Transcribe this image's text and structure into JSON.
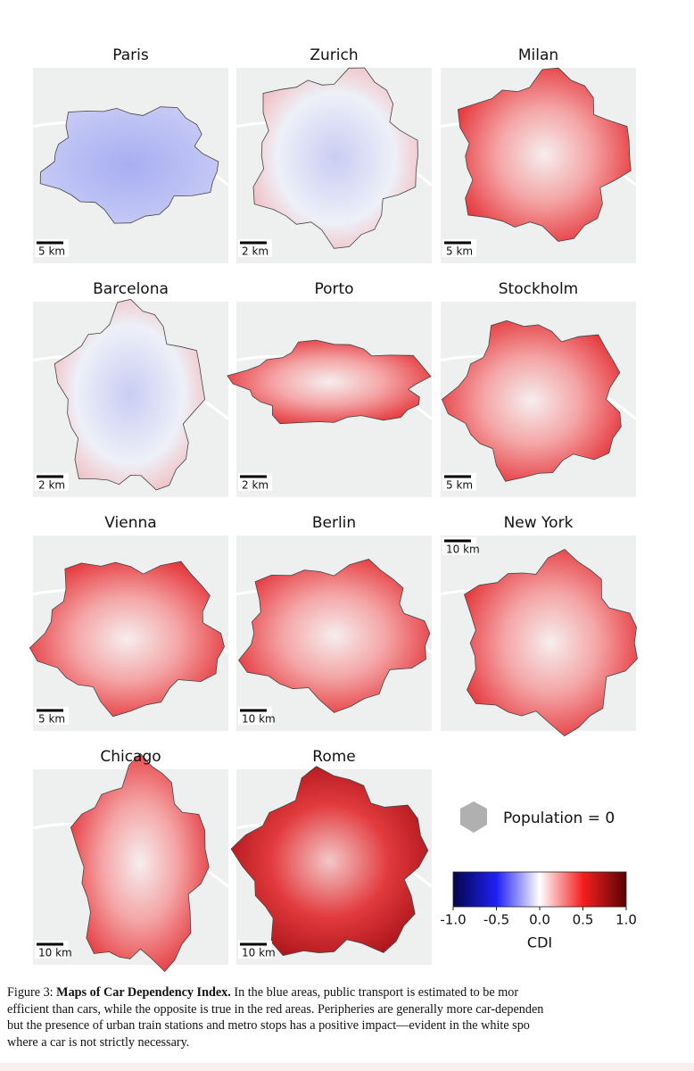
{
  "figure": {
    "panels": [
      {
        "title": "Paris",
        "scale": "5 km"
      },
      {
        "title": "Zurich",
        "scale": "2 km"
      },
      {
        "title": "Milan",
        "scale": "5 km"
      },
      {
        "title": "Barcelona",
        "scale": "2 km"
      },
      {
        "title": "Porto",
        "scale": "2 km"
      },
      {
        "title": "Stockholm",
        "scale": "5 km"
      },
      {
        "title": "Vienna",
        "scale": "5 km"
      },
      {
        "title": "Berlin",
        "scale": "10 km"
      },
      {
        "title": "New York",
        "scale": "10 km"
      },
      {
        "title": "Chicago",
        "scale": "10 km"
      },
      {
        "title": "Rome",
        "scale": "10 km"
      }
    ],
    "legend": {
      "label": "Population = 0"
    },
    "colorbar": {
      "label": "CDI",
      "lim": [
        -1,
        1
      ],
      "ticks": [
        {
          "value": -1,
          "label": "-1.0"
        },
        {
          "value": -0.5,
          "label": "-0.5"
        },
        {
          "value": 0,
          "label": "0.0"
        },
        {
          "value": 0.5,
          "label": "0.5"
        },
        {
          "value": 1,
          "label": "1.0"
        }
      ]
    }
  },
  "caption": {
    "label": "Figure 3:",
    "title": "Maps of Car Dependency Index.",
    "lines": [
      "In the blue areas, public transport is estimated to be mor",
      "efficient than cars, while the opposite is true in the red areas. Peripheries are generally more car-dependen",
      "but the presence of urban train stations and metro stops has a positive impact—evident in the white spo",
      "where a car is not strictly necessary."
    ]
  }
}
